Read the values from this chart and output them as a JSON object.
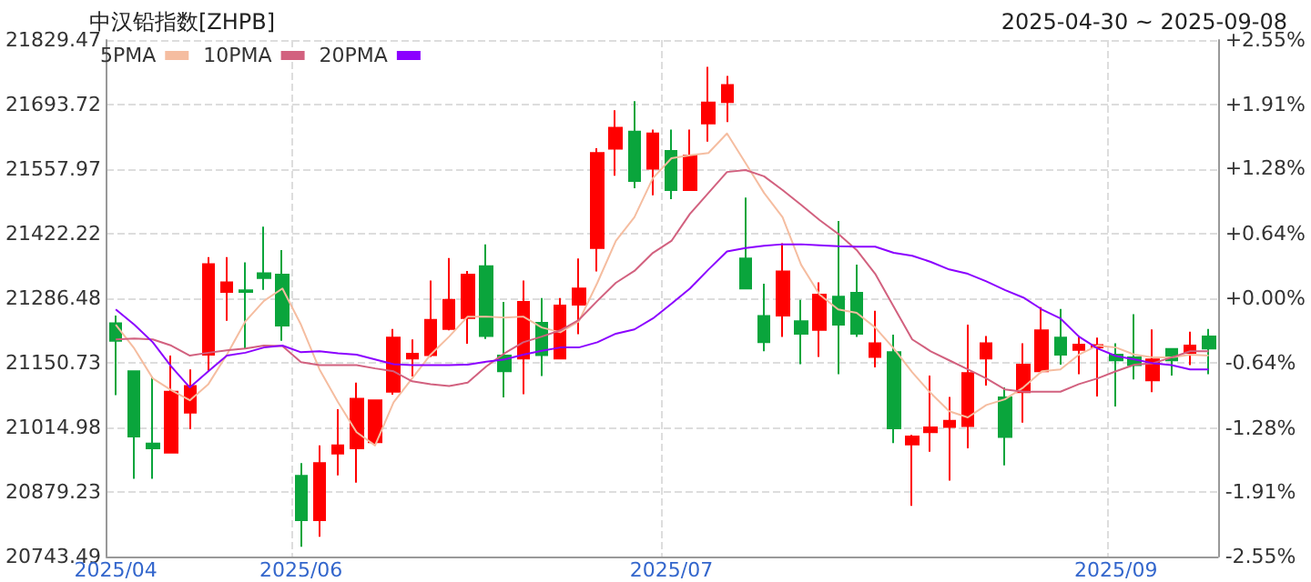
{
  "chart_data": {
    "type": "candlestick",
    "title": "中汉铅指数[ZHPB]",
    "subtitle": "2025-04-30 ~ 2025-09-08",
    "categories": [
      "2025/04",
      null,
      null,
      null,
      null,
      null,
      null,
      null,
      null,
      null,
      "2025/06",
      null,
      null,
      null,
      null,
      null,
      null,
      null,
      null,
      null,
      null,
      null,
      null,
      null,
      null,
      null,
      null,
      null,
      null,
      null,
      "2025/07",
      null,
      null,
      null,
      null,
      null,
      null,
      null,
      null,
      null,
      null,
      null,
      null,
      null,
      null,
      null,
      null,
      null,
      null,
      null,
      null,
      null,
      null,
      null,
      "2025/09",
      null,
      null,
      null,
      null,
      null
    ],
    "ohlc": [
      [
        21234,
        21250,
        21083,
        21197
      ],
      [
        21133,
        21135,
        20907,
        20996
      ],
      [
        20981,
        21122,
        20907,
        20971
      ],
      [
        20962,
        21166,
        20962,
        21090
      ],
      [
        21046,
        21137,
        21011,
        21102
      ],
      [
        21168,
        21373,
        21133,
        21358
      ],
      [
        21300,
        21373,
        21239,
        21320
      ],
      [
        21303,
        21362,
        21181,
        21300
      ],
      [
        21339,
        21437,
        21304,
        21329
      ],
      [
        21336,
        21388,
        21197,
        21229
      ],
      [
        20913,
        20940,
        20764,
        20820
      ],
      [
        20820,
        20977,
        20785,
        20940
      ],
      [
        20960,
        21053,
        20914,
        20977
      ],
      [
        20971,
        21109,
        20899,
        21075
      ],
      [
        20984,
        21072,
        20980,
        21072
      ],
      [
        21090,
        21222,
        21084,
        21204
      ],
      [
        21160,
        21200,
        21122,
        21170
      ],
      [
        21167,
        21324,
        21163,
        21241
      ],
      [
        21222,
        21371,
        21219,
        21283
      ],
      [
        21245,
        21344,
        21191,
        21336
      ],
      [
        21354,
        21400,
        21201,
        21207
      ],
      [
        21166,
        21279,
        21078,
        21133
      ],
      [
        21160,
        21324,
        21085,
        21279
      ],
      [
        21235,
        21287,
        21123,
        21167
      ],
      [
        21160,
        21287,
        21160,
        21271
      ],
      [
        21273,
        21370,
        21211,
        21307
      ],
      [
        21392,
        21602,
        21343,
        21592
      ],
      [
        21601,
        21682,
        21544,
        21645
      ],
      [
        21637,
        21701,
        21518,
        21533
      ],
      [
        21559,
        21641,
        21503,
        21633
      ],
      [
        21596,
        21641,
        21495,
        21514
      ],
      [
        21514,
        21641,
        21514,
        21586
      ],
      [
        21654,
        21773,
        21616,
        21698
      ],
      [
        21699,
        21754,
        21657,
        21735
      ],
      [
        21370,
        21498,
        21307,
        21307
      ],
      [
        21249,
        21317,
        21175,
        21194
      ],
      [
        21250,
        21402,
        21205,
        21343
      ],
      [
        21238,
        21283,
        21148,
        21212
      ],
      [
        21220,
        21320,
        21163,
        21294
      ],
      [
        21290,
        21449,
        21127,
        21231
      ],
      [
        21298,
        21357,
        21205,
        21212
      ],
      [
        21163,
        21260,
        21141,
        21192
      ],
      [
        21173,
        21210,
        20982,
        21013
      ],
      [
        20979,
        20999,
        20850,
        20996
      ],
      [
        21005,
        21124,
        20964,
        21015
      ],
      [
        21016,
        21079,
        20903,
        21029
      ],
      [
        21018,
        21231,
        20971,
        21129
      ],
      [
        21160,
        21207,
        21103,
        21192
      ],
      [
        21078,
        21099,
        20935,
        20995
      ],
      [
        21089,
        21192,
        21025,
        21147
      ],
      [
        21133,
        21268,
        21129,
        21219
      ],
      [
        21204,
        21264,
        21147,
        21168
      ],
      [
        21178,
        21207,
        21127,
        21189
      ],
      [
        21183,
        21204,
        21080,
        21188
      ],
      [
        21168,
        21192,
        21059,
        21156
      ],
      [
        21162,
        21253,
        21116,
        21146
      ],
      [
        21114,
        21221,
        21089,
        21158
      ],
      [
        21180,
        21182,
        21124,
        21156
      ],
      [
        21172,
        21216,
        21146,
        21187
      ],
      [
        21206,
        21222,
        21127,
        21181
      ]
    ],
    "colors": [
      "#0aa53c",
      "#0aa53c",
      "#0aa53c",
      "#ff0000",
      "#ff0000",
      "#ff0000",
      "#ff0000",
      "#0aa53c",
      "#0aa53c",
      "#0aa53c",
      "#0aa53c",
      "#ff0000",
      "#ff0000",
      "#ff0000",
      "#ff0000",
      "#ff0000",
      "#ff0000",
      "#ff0000",
      "#ff0000",
      "#ff0000",
      "#0aa53c",
      "#0aa53c",
      "#ff0000",
      "#0aa53c",
      "#ff0000",
      "#ff0000",
      "#ff0000",
      "#ff0000",
      "#0aa53c",
      "#ff0000",
      "#0aa53c",
      "#ff0000",
      "#ff0000",
      "#ff0000",
      "#0aa53c",
      "#0aa53c",
      "#ff0000",
      "#0aa53c",
      "#ff0000",
      "#0aa53c",
      "#0aa53c",
      "#ff0000",
      "#0aa53c",
      "#ff0000",
      "#ff0000",
      "#ff0000",
      "#ff0000",
      "#ff0000",
      "#0aa53c",
      "#ff0000",
      "#ff0000",
      "#0aa53c",
      "#ff0000",
      "#ff0000",
      "#0aa53c",
      "#0aa53c",
      "#ff0000",
      "#0aa53c",
      "#ff0000",
      "#0aa53c"
    ],
    "series": [
      {
        "name": "5PMA",
        "type": "line",
        "color": "#f5bda0",
        "values": [
          21231,
          21181,
          21118,
          21093,
          21072,
          21106,
          21168,
          21238,
          21281,
          21307,
          21231,
          21137,
          21068,
          21005,
          20977,
          21068,
          21118,
          21168,
          21206,
          21248,
          21248,
          21246,
          21248,
          21225,
          21215,
          21238,
          21319,
          21407,
          21457,
          21539,
          21581,
          21587,
          21592,
          21633,
          21571,
          21508,
          21457,
          21357,
          21294,
          21263,
          21256,
          21225,
          21181,
          21131,
          21087,
          21049,
          21036,
          21062,
          21074,
          21099,
          21133,
          21137,
          21168,
          21187,
          21183,
          21168,
          21162,
          21162,
          21168,
          21166
        ]
      },
      {
        "name": "10PMA",
        "type": "line",
        "color": "#d2617f",
        "values": [
          21200,
          21202,
          21200,
          21187,
          21166,
          21172,
          21177,
          21181,
          21187,
          21186,
          21152,
          21146,
          21146,
          21146,
          21139,
          21133,
          21112,
          21106,
          21102,
          21109,
          21143,
          21171,
          21194,
          21206,
          21219,
          21241,
          21281,
          21319,
          21344,
          21382,
          21407,
          21464,
          21508,
          21552,
          21556,
          21543,
          21514,
          21483,
          21451,
          21422,
          21388,
          21338,
          21269,
          21200,
          21175,
          21156,
          21137,
          21118,
          21095,
          21090,
          21090,
          21090,
          21106,
          21118,
          21133,
          21147,
          21150,
          21162,
          21175,
          21175
        ]
      },
      {
        "name": "20PMA",
        "type": "line",
        "color": "#8b00ff",
        "values": [
          21263,
          21231,
          21194,
          21143,
          21099,
          21133,
          21166,
          21172,
          21183,
          21187,
          21173,
          21175,
          21171,
          21168,
          21158,
          21148,
          21146,
          21146,
          21146,
          21147,
          21153,
          21158,
          21168,
          21176,
          21183,
          21183,
          21194,
          21212,
          21221,
          21244,
          21275,
          21307,
          21347,
          21385,
          21392,
          21397,
          21400,
          21400,
          21398,
          21396,
          21395,
          21395,
          21382,
          21376,
          21363,
          21347,
          21338,
          21322,
          21304,
          21288,
          21263,
          21244,
          21206,
          21181,
          21165,
          21158,
          21150,
          21146,
          21137,
          21137
        ]
      }
    ],
    "ylim": [
      20743.49,
      21829.47
    ],
    "yticks": [
      20743.49,
      20879.23,
      21014.98,
      21150.73,
      21286.48,
      21422.22,
      21557.97,
      21693.72,
      21829.47
    ],
    "y2lim": [
      -2.55,
      2.55
    ],
    "y2ticks": [
      {
        "value": -2.55,
        "label": "-2.55%"
      },
      {
        "value": -1.91,
        "label": "-1.91%"
      },
      {
        "value": -1.28,
        "label": "-1.28%"
      },
      {
        "value": -0.64,
        "label": "-0.64%"
      },
      {
        "value": 0,
        "label": "+0.00%"
      },
      {
        "value": 0.64,
        "label": "+0.64%"
      },
      {
        "value": 1.28,
        "label": "+1.28%"
      },
      {
        "value": 1.91,
        "label": "+1.91%"
      },
      {
        "value": 2.55,
        "label": "+2.55%"
      }
    ],
    "grid": true,
    "legend": "top left",
    "marker": "none",
    "line_style": "solid"
  }
}
